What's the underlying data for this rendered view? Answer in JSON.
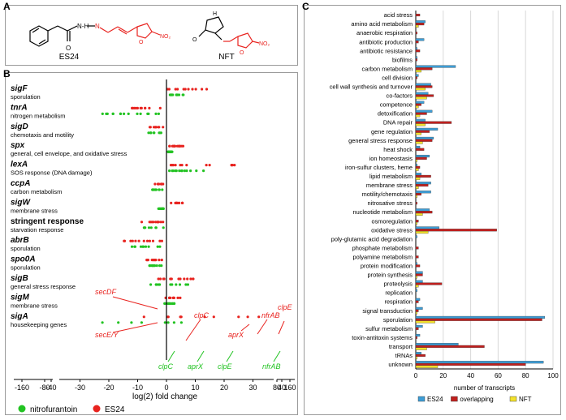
{
  "panels": {
    "a": "A",
    "b": "B",
    "c": "C"
  },
  "panel_a": {
    "left_label": "ES24",
    "right_label": "NFT",
    "atoms": {
      "oxygen": "O",
      "nitrogen": "N",
      "hydrogen": "H",
      "amine_h": "N-H",
      "nitro": "NO₂",
      "colors": {
        "nitro_furan": "#e8231f",
        "bonds": "#000000"
      }
    }
  },
  "panel_b": {
    "xlabel": "log(2) fold change",
    "ticks_main": [
      "-40",
      "-30",
      "-20",
      "-10",
      "0",
      "10",
      "20",
      "30",
      "40"
    ],
    "ticks_left": [
      "-160",
      "-80"
    ],
    "ticks_right": [
      "80",
      "160"
    ],
    "legend": [
      {
        "name": "nitrofurantoin",
        "color": "#22c322"
      },
      {
        "name": "ES24",
        "color": "#e8231f"
      }
    ],
    "groups": [
      {
        "gene": "sigF",
        "desc": "sporulation"
      },
      {
        "gene": "tnrA",
        "desc": "nitrogen metabolism"
      },
      {
        "gene": "sigD",
        "desc": "chemotaxis and motility"
      },
      {
        "gene": "spx",
        "desc": "general, cell envelope, and oxidative stress"
      },
      {
        "gene": "lexA",
        "desc": "SOS response (DNA damage)"
      },
      {
        "gene": "ccpA",
        "desc": "carbon metabolism"
      },
      {
        "gene": "sigW",
        "desc": "membrane stress"
      },
      {
        "gene": "stringent response",
        "desc": "starvation response"
      },
      {
        "gene": "abrB",
        "desc": "sporulation"
      },
      {
        "gene": "spo0A",
        "desc": "sporulation"
      },
      {
        "gene": "sigB",
        "desc": "general stress response"
      },
      {
        "gene": "sigM",
        "desc": "membrane stress"
      },
      {
        "gene": "sigA",
        "desc": "housekeeping genes"
      }
    ],
    "annotations_red": [
      "secDF",
      "secE/Y",
      "clpC",
      "nfrAB",
      "clpE",
      "aprX"
    ],
    "annotations_green": [
      "clpC",
      "aprX",
      "clpE",
      "nfrAB"
    ]
  },
  "chart_data": {
    "type": "bar",
    "orientation": "horizontal",
    "xlabel": "number of transcripts",
    "xlim": [
      0,
      100
    ],
    "xticks": [
      "0",
      "20",
      "40",
      "60",
      "80",
      "100"
    ],
    "grid": "vertical",
    "legend_position": "bottom",
    "categories": [
      "acid stress",
      "amino acid metabolism",
      "anaerobic respiration",
      "antibiotic production",
      "antibiotic resistance",
      "biofilms",
      "carbon metabolism",
      "cell division",
      "cell wall synthesis and turnover",
      "co-factors",
      "competence",
      "detoxification",
      "DNA repair",
      "gene regulation",
      "general stress response",
      "heat shock",
      "ion homeostasis",
      "iron-sulfur clusters, heme",
      "lipid metabolism",
      "membrane stress",
      "motility/chemotaxis",
      "nitrosative stress",
      "nucleotide metabolism",
      "osmoregulation",
      "oxidative stress",
      "poly-glutamic acid degradation",
      "phosphate metabolism",
      "polyamine metabolism",
      "protein modification",
      "protein synthesis",
      "proteolysis",
      "replication",
      "respiration",
      "signal transduction",
      "sporulation",
      "sulfur metabolism",
      "toxin-antitoxin systems",
      "transport",
      "tRNAs",
      "unknown"
    ],
    "series": [
      {
        "name": "ES24",
        "color": "#3d9dd6",
        "values": [
          0,
          7,
          0,
          6,
          1,
          1,
          29,
          2,
          11,
          9,
          6,
          12,
          7,
          16,
          13,
          3,
          10,
          1,
          4,
          11,
          11,
          0,
          10,
          0,
          17,
          1,
          0,
          0,
          1,
          5,
          5,
          1,
          3,
          5,
          94,
          5,
          3,
          31,
          4,
          93
        ]
      },
      {
        "name": "overlapping",
        "color": "#c0201e",
        "values": [
          3,
          6,
          1,
          2,
          3,
          1,
          12,
          1,
          12,
          13,
          4,
          8,
          26,
          10,
          12,
          6,
          8,
          3,
          11,
          9,
          4,
          1,
          12,
          2,
          59,
          0,
          2,
          2,
          3,
          5,
          19,
          0,
          2,
          2,
          92,
          2,
          1,
          50,
          7,
          80
        ]
      },
      {
        "name": "NFT",
        "color": "#f2e12b",
        "values": [
          0,
          2,
          0,
          0,
          0,
          0,
          4,
          0,
          7,
          8,
          2,
          3,
          7,
          4,
          5,
          0,
          1,
          2,
          3,
          2,
          1,
          0,
          5,
          1,
          9,
          0,
          0,
          0,
          0,
          1,
          2,
          0,
          0,
          1,
          14,
          0,
          0,
          8,
          1,
          16
        ]
      }
    ]
  }
}
